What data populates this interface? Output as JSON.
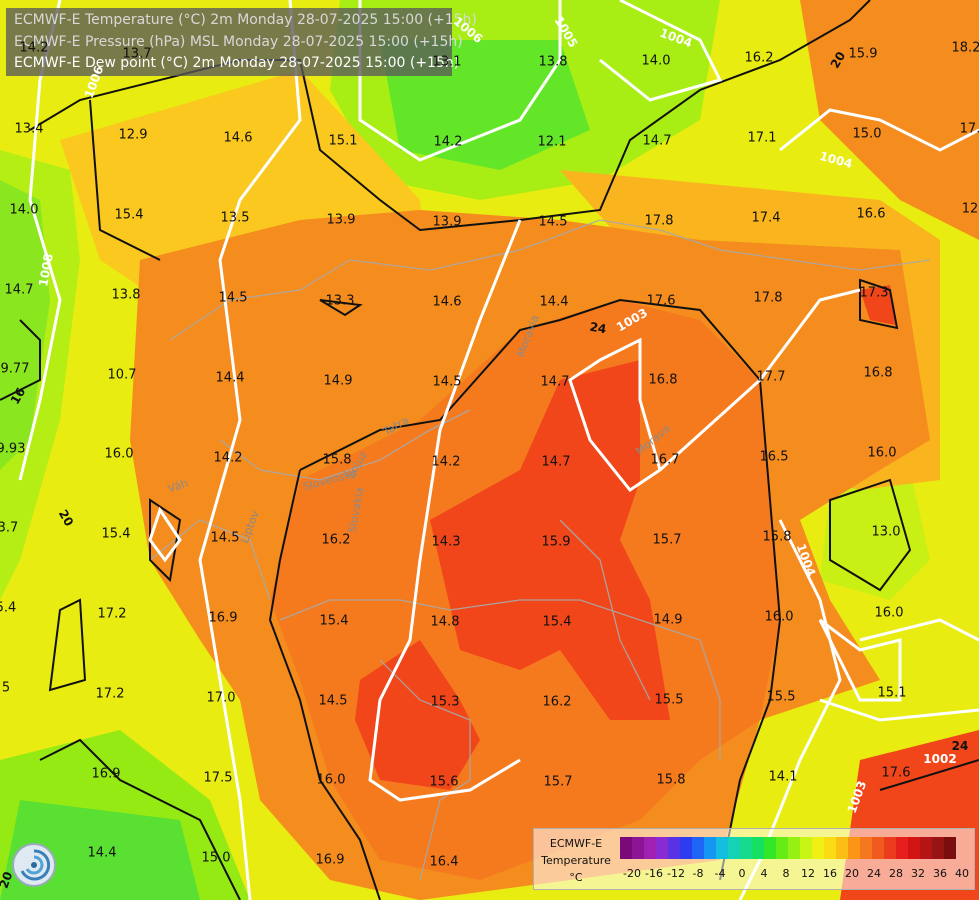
{
  "header": {
    "line1": "ECMWF-E Temperature (°C) 2m Monday 28-07-2025 15:00 (+15h)",
    "line2": "ECMWF-E Pressure (hPa) MSL Monday 28-07-2025 15:00 (+15h)",
    "line3": "ECMWF-E Dew point (°C) 2m Monday 28-07-2025 15:00 (+15h)"
  },
  "dewpoints": [
    "14.2",
    "13.7",
    "13.1",
    "13.8",
    "14.0",
    "16.2",
    "15.9",
    "18.2",
    "13.4",
    "12.9",
    "14.6",
    "15.1",
    "14.2",
    "12.1",
    "14.7",
    "17.1",
    "15.0",
    "17.",
    "14.0",
    "15.4",
    "13.5",
    "13.9",
    "13.9",
    "14.5",
    "17.8",
    "17.4",
    "16.6",
    "12",
    "14.7",
    "13.8",
    "14.5",
    "13.3",
    "14.6",
    "14.4",
    "17.6",
    "17.8",
    "17.3",
    "9.77",
    "10.7",
    "14.4",
    "14.9",
    "14.5",
    "14.7",
    "16.8",
    "17.7",
    "16.8",
    "9.93",
    "16.0",
    "14.2",
    "15.8",
    "14.2",
    "14.7",
    "16.7",
    "16.5",
    "16.0",
    "3.7",
    "15.4",
    "14.5",
    "16.2",
    "14.3",
    "15.9",
    "15.7",
    "15.8",
    "13.0",
    "5.4",
    "17.2",
    "16.9",
    "15.4",
    "14.8",
    "15.4",
    "14.9",
    "16.0",
    "16.0",
    "5",
    "17.2",
    "17.0",
    "14.5",
    "15.3",
    "16.2",
    "15.5",
    "15.5",
    "15.1",
    "16.9",
    "17.5",
    "16.0",
    "15.6",
    "15.7",
    "15.8",
    "14.1",
    "17.6",
    "14.4",
    "15.0",
    "16.9",
    "16.4"
  ],
  "isobars": [
    "1006",
    "1005",
    "1004",
    "1004",
    "1008",
    "1003",
    "1004",
    "1002",
    "1003",
    "1006"
  ],
  "isotherms": [
    "20",
    "24",
    "20",
    "24",
    "16",
    "20"
  ],
  "places": [
    "Moravia",
    "Morava",
    "Slovensko",
    "Slovakia",
    "Sojuz",
    "Váh",
    "Liptov",
    "Tatra"
  ],
  "legend": {
    "title_line1": "ECMWF-E",
    "title_line2": "Temperature",
    "title_line3": "°C",
    "ticks": [
      "-20",
      "-16",
      "-12",
      "-8",
      "-4",
      "0",
      "4",
      "8",
      "12",
      "16",
      "20",
      "24",
      "28",
      "32",
      "36",
      "40"
    ],
    "colors": [
      "#7a0a7a",
      "#8e1496",
      "#a020b4",
      "#8a2ad2",
      "#5a32e6",
      "#2d3cf0",
      "#1e64f5",
      "#1496f5",
      "#14bede",
      "#14d2b4",
      "#14dc8c",
      "#14e064",
      "#32e628",
      "#64ec14",
      "#96f014",
      "#c8f514",
      "#f0f014",
      "#fadc14",
      "#fabe14",
      "#fa9614",
      "#f5781e",
      "#f05a1e",
      "#eb3c1e",
      "#e61e1e",
      "#d21414",
      "#b41414",
      "#961414",
      "#7a0e0e"
    ]
  },
  "colors": {
    "hot": "#f04616",
    "warm": "#f58c1e",
    "mild": "#fab41e",
    "yellow": "#f5dc14",
    "lime": "#c8f014",
    "green": "#64e628",
    "isobar": "#ffffff",
    "isotherm": "#111111"
  }
}
